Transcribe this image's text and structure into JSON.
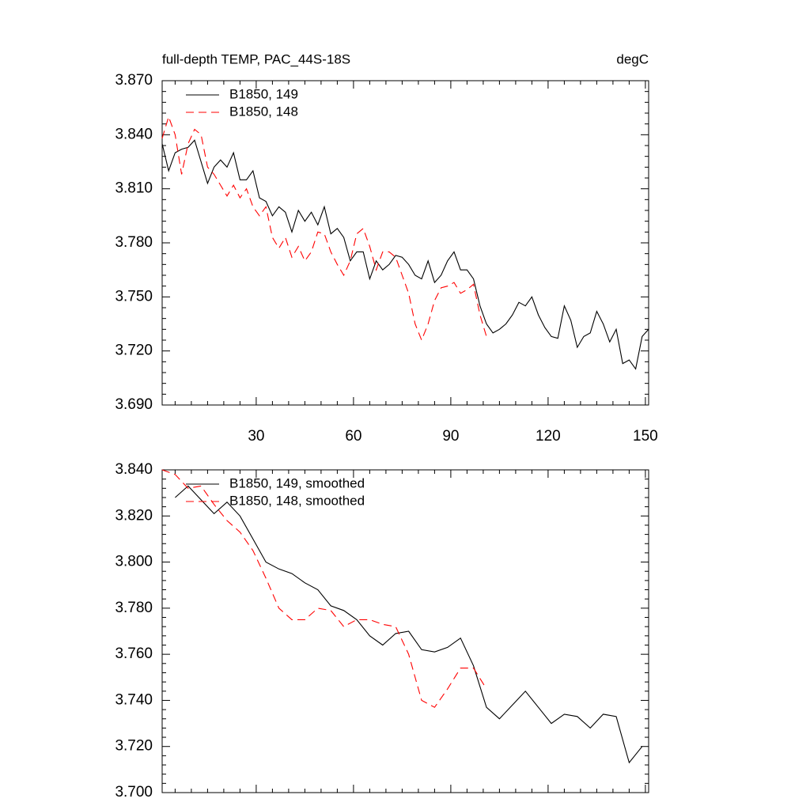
{
  "chart_data": [
    {
      "type": "line",
      "title": "full-depth TEMP, PAC_44S-18S",
      "units": "degC",
      "xlim": [
        1,
        151
      ],
      "xticks": [
        30,
        60,
        90,
        120,
        150
      ],
      "xtick_labels": true,
      "ylim": [
        3.69,
        3.87
      ],
      "yticks": [
        {
          "value": 3.69,
          "label": "3.690"
        },
        {
          "value": 3.72,
          "label": "3.720"
        },
        {
          "value": 3.75,
          "label": "3.750"
        },
        {
          "value": 3.78,
          "label": "3.780"
        },
        {
          "value": 3.81,
          "label": "3.810"
        },
        {
          "value": 3.84,
          "label": "3.840"
        },
        {
          "value": 3.87,
          "label": "3.870"
        }
      ],
      "x": [
        1,
        3,
        5,
        7,
        9,
        11,
        13,
        15,
        17,
        19,
        21,
        23,
        25,
        27,
        29,
        31,
        33,
        35,
        37,
        39,
        41,
        43,
        45,
        47,
        49,
        51,
        53,
        55,
        57,
        59,
        61,
        63,
        65,
        67,
        69,
        71,
        73,
        75,
        77,
        79,
        81,
        83,
        85,
        87,
        89,
        91,
        93,
        95,
        97,
        99,
        101,
        103,
        105,
        107,
        109,
        111,
        113,
        115,
        117,
        119,
        121,
        123,
        125,
        127,
        129,
        131,
        133,
        135,
        137,
        139,
        141,
        143,
        145,
        147,
        149,
        151
      ],
      "series": [
        {
          "name": "B1850, 149",
          "color": "#000000",
          "dash": "solid",
          "values": [
            3.835,
            3.82,
            3.83,
            3.832,
            3.833,
            3.837,
            3.825,
            3.813,
            3.822,
            3.826,
            3.822,
            3.83,
            3.815,
            3.815,
            3.82,
            3.805,
            3.803,
            3.795,
            3.8,
            3.797,
            3.786,
            3.798,
            3.792,
            3.797,
            3.79,
            3.8,
            3.785,
            3.788,
            3.783,
            3.77,
            3.775,
            3.775,
            3.76,
            3.77,
            3.765,
            3.768,
            3.773,
            3.772,
            3.768,
            3.762,
            3.76,
            3.77,
            3.758,
            3.762,
            3.77,
            3.775,
            3.765,
            3.765,
            3.76,
            3.745,
            3.735,
            3.73,
            3.732,
            3.735,
            3.74,
            3.747,
            3.745,
            3.75,
            3.74,
            3.733,
            3.728,
            3.727,
            3.745,
            3.737,
            3.722,
            3.728,
            3.73,
            3.742,
            3.735,
            3.725,
            3.732,
            3.713,
            3.715,
            3.71,
            3.728,
            3.732
          ]
        },
        {
          "name": "B1850, 148",
          "color": "#ff0000",
          "dash": "dashed",
          "values": [
            3.838,
            3.85,
            3.84,
            3.818,
            3.835,
            3.843,
            3.84,
            3.822,
            3.818,
            3.812,
            3.806,
            3.812,
            3.805,
            3.81,
            3.8,
            3.795,
            3.8,
            3.783,
            3.777,
            3.783,
            3.772,
            3.778,
            3.77,
            3.775,
            3.786,
            3.785,
            3.775,
            3.768,
            3.762,
            3.77,
            3.785,
            3.788,
            3.778,
            3.765,
            3.775,
            3.775,
            3.772,
            3.762,
            3.752,
            3.735,
            3.726,
            3.735,
            3.748,
            3.755,
            3.756,
            3.758,
            3.752,
            3.754,
            3.757,
            3.74,
            3.728,
            null,
            null,
            null,
            null,
            null,
            null,
            null,
            null,
            null,
            null,
            null,
            null,
            null,
            null,
            null,
            null,
            null,
            null,
            null,
            null,
            null,
            null,
            null,
            null,
            null
          ]
        }
      ]
    },
    {
      "type": "line",
      "xlim": [
        1,
        151
      ],
      "xticks": [
        30,
        60,
        90,
        120,
        150
      ],
      "xtick_labels": false,
      "ylim": [
        3.7,
        3.84
      ],
      "yticks": [
        {
          "value": 3.7,
          "label": "3.700"
        },
        {
          "value": 3.72,
          "label": "3.720"
        },
        {
          "value": 3.74,
          "label": "3.740"
        },
        {
          "value": 3.76,
          "label": "3.760"
        },
        {
          "value": 3.78,
          "label": "3.780"
        },
        {
          "value": 3.8,
          "label": "3.800"
        },
        {
          "value": 3.82,
          "label": "3.820"
        },
        {
          "value": 3.84,
          "label": "3.840"
        }
      ],
      "x": [
        1,
        5,
        9,
        13,
        17,
        21,
        25,
        29,
        33,
        37,
        41,
        45,
        49,
        53,
        57,
        61,
        65,
        69,
        73,
        77,
        81,
        85,
        89,
        93,
        97,
        101,
        105,
        109,
        113,
        117,
        121,
        125,
        129,
        133,
        137,
        141,
        145,
        149
      ],
      "series": [
        {
          "name": "B1850, 149, smoothed",
          "color": "#000000",
          "dash": "solid",
          "values": [
            null,
            3.828,
            3.833,
            3.827,
            3.821,
            3.826,
            3.82,
            3.81,
            3.8,
            3.797,
            3.795,
            3.791,
            3.788,
            3.781,
            3.779,
            3.775,
            3.768,
            3.764,
            3.769,
            3.77,
            3.762,
            3.761,
            3.763,
            3.767,
            3.755,
            3.737,
            3.732,
            3.738,
            3.744,
            3.737,
            3.73,
            3.734,
            3.733,
            3.728,
            3.734,
            3.733,
            3.713,
            3.72
          ]
        },
        {
          "name": "B1850, 148, smoothed",
          "color": "#ff0000",
          "dash": "dashed",
          "values": [
            3.84,
            3.838,
            3.832,
            3.833,
            3.825,
            3.818,
            3.813,
            3.805,
            3.793,
            3.78,
            3.775,
            3.775,
            3.78,
            3.779,
            3.772,
            3.775,
            3.775,
            3.773,
            3.772,
            3.76,
            3.74,
            3.737,
            3.745,
            3.754,
            3.754,
            3.745,
            null,
            null,
            null,
            null,
            null,
            null,
            null,
            null,
            null,
            null,
            null,
            null
          ]
        }
      ]
    }
  ]
}
